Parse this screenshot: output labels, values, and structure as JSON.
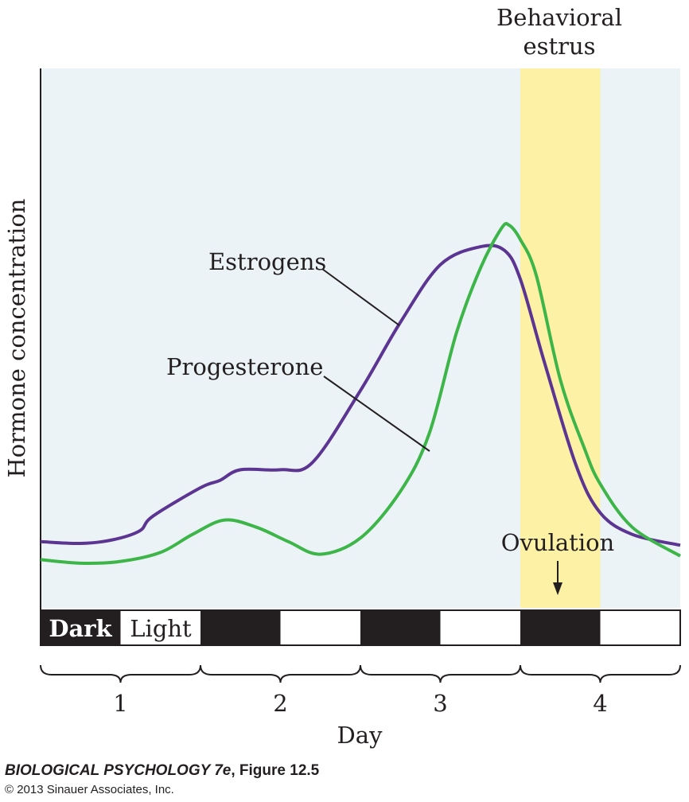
{
  "chart_data": {
    "type": "line",
    "xlabel": "Day",
    "ylabel": "Hormone concentration",
    "xlim": [
      0.5,
      4.5
    ],
    "ylim": [
      0,
      100
    ],
    "x_ticks": [
      "1",
      "2",
      "3",
      "4"
    ],
    "grid": false,
    "series": [
      {
        "name": "Estrogens",
        "color": "#5c3592",
        "x": [
          0.5,
          0.75,
          0.95,
          1.12,
          1.2,
          1.5,
          1.62,
          1.75,
          2.0,
          2.2,
          2.5,
          2.75,
          3.0,
          3.25,
          3.4,
          3.5,
          3.65,
          3.85,
          4.0,
          4.2,
          4.5
        ],
        "y": [
          12,
          11.5,
          12.5,
          15,
          19,
          27,
          29,
          32,
          32,
          34,
          54,
          73,
          89,
          94,
          93,
          85,
          62,
          33,
          20,
          14,
          11
        ]
      },
      {
        "name": "Progesterone",
        "color": "#3db549",
        "x": [
          0.5,
          0.75,
          1.0,
          1.25,
          1.45,
          1.65,
          1.85,
          2.05,
          2.25,
          2.5,
          2.75,
          2.93,
          3.1,
          3.25,
          3.38,
          3.43,
          3.5,
          3.6,
          3.75,
          3.9,
          4.0,
          4.2,
          4.5
        ],
        "y": [
          7,
          6,
          6.5,
          9,
          14,
          18,
          16,
          12,
          8.5,
          13,
          26,
          42,
          70,
          88,
          99,
          100,
          96,
          86,
          57,
          38,
          28,
          16,
          8
        ]
      }
    ],
    "series_labels": [
      "Estrogens",
      "Progesterone"
    ],
    "annotations": {
      "estrus_label": [
        "Behavioral",
        "estrus"
      ],
      "estrus_range": [
        3.5,
        4.0
      ],
      "estrus_color": "#fdf1a6",
      "plot_background": "#ebf3f6",
      "ovulation_label": "Ovulation",
      "ovulation_x": 3.74
    },
    "light_dark_bar": {
      "segments": [
        "dark",
        "light",
        "dark",
        "light",
        "dark",
        "light",
        "dark",
        "light"
      ],
      "dark_label": "Dark",
      "light_label": "Light"
    }
  },
  "credit": {
    "title_italic": "BIOLOGICAL PSYCHOLOGY 7e",
    "title_rest": ", Figure 12.5",
    "copyright": "© 2013 Sinauer Associates, Inc."
  }
}
